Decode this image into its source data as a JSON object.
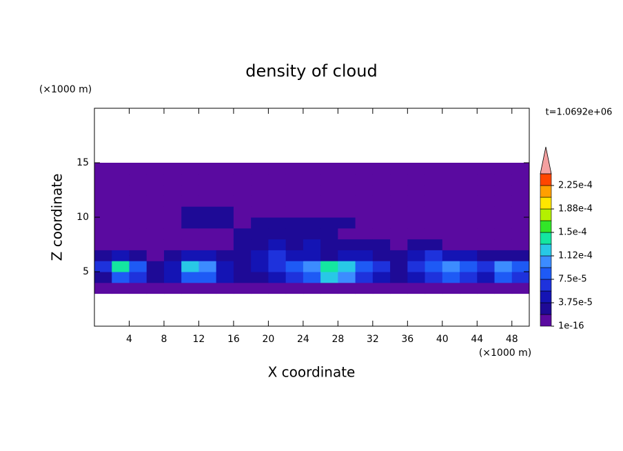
{
  "chart_data": {
    "type": "contour",
    "title": "density of cloud",
    "x_label": "X coordinate",
    "y_label": "Z coordinate",
    "x_unit": "(×1000 m)",
    "y_unit": "(×1000 m)",
    "time_label": "t=1.0692e+06",
    "xlim": [
      0,
      50
    ],
    "ylim": [
      0,
      20
    ],
    "xticks": [
      4,
      8,
      12,
      16,
      20,
      24,
      28,
      32,
      36,
      40,
      44,
      48
    ],
    "yticks": [
      5,
      10,
      15
    ],
    "x_edges": [
      0,
      2,
      4,
      6,
      8,
      10,
      12,
      14,
      16,
      18,
      20,
      22,
      24,
      26,
      28,
      30,
      32,
      34,
      36,
      38,
      40,
      42,
      44,
      46,
      48,
      50
    ],
    "y_edges": [
      3,
      4,
      5,
      6,
      7,
      8,
      9,
      10,
      11,
      12,
      13,
      14,
      15
    ],
    "z": [
      [
        1e-16,
        1e-16,
        1e-16,
        1e-16,
        1e-16,
        1e-16,
        1e-16,
        1e-16,
        1e-16,
        1e-16,
        1e-16,
        1e-16,
        1e-16,
        1e-16,
        1e-16,
        1e-16,
        1e-16,
        1e-16,
        1e-16,
        1e-16,
        1e-16,
        1e-16,
        1e-16,
        1e-16,
        1e-16
      ],
      [
        3e-05,
        8e-05,
        6e-05,
        2e-05,
        4e-05,
        9e-05,
        8e-05,
        4e-05,
        2e-05,
        3e-05,
        4e-05,
        6e-05,
        9e-05,
        0.00013,
        0.00011,
        7e-05,
        5e-05,
        2e-05,
        4e-05,
        6e-05,
        8e-05,
        7e-05,
        5e-05,
        8e-05,
        6e-05
      ],
      [
        7e-05,
        0.00014,
        9e-05,
        3e-05,
        4e-05,
        0.00013,
        0.0001,
        5e-05,
        3e-05,
        5e-05,
        6e-05,
        8e-05,
        0.00011,
        0.00015,
        0.00013,
        8e-05,
        6e-05,
        3e-05,
        6e-05,
        9e-05,
        0.00011,
        9e-05,
        7e-05,
        0.00011,
        9e-05
      ],
      [
        2e-05,
        4e-05,
        3e-05,
        1e-16,
        2e-05,
        4e-05,
        5e-05,
        3e-05,
        3e-05,
        5e-05,
        6e-05,
        5e-05,
        4e-05,
        3e-05,
        4e-05,
        4e-05,
        3e-05,
        2e-05,
        5e-05,
        6e-05,
        5e-05,
        4e-05,
        3e-05,
        3e-05,
        2e-05
      ],
      [
        1e-16,
        1e-16,
        1e-16,
        1e-16,
        1e-16,
        1e-16,
        1e-16,
        1e-16,
        2e-05,
        3e-05,
        4e-05,
        3e-05,
        4e-05,
        3e-05,
        3e-05,
        2e-05,
        2e-05,
        1e-16,
        3e-05,
        2e-05,
        1e-16,
        1e-16,
        1e-16,
        1e-16,
        1e-16
      ],
      [
        1e-16,
        1e-16,
        1e-16,
        1e-16,
        1e-16,
        1e-16,
        1e-16,
        1e-16,
        2e-05,
        3e-05,
        3e-05,
        2e-05,
        2e-05,
        2e-05,
        1e-16,
        1e-16,
        1e-16,
        1e-16,
        1e-16,
        1e-16,
        1e-16,
        1e-16,
        1e-16,
        1e-16,
        1e-16
      ],
      [
        1e-16,
        1e-16,
        1e-16,
        1e-16,
        1e-16,
        2e-05,
        2e-05,
        2e-05,
        1e-16,
        2e-05,
        2e-05,
        2e-05,
        2e-05,
        2e-05,
        2e-05,
        1e-16,
        1e-16,
        1e-16,
        1e-16,
        1e-16,
        1e-16,
        1e-16,
        1e-16,
        1e-16,
        1e-16
      ],
      [
        1e-16,
        1e-16,
        1e-16,
        1e-16,
        1e-16,
        3e-05,
        3e-05,
        2e-05,
        1e-16,
        1e-16,
        1e-16,
        1e-16,
        1e-16,
        1e-16,
        1e-16,
        1e-16,
        1e-16,
        1e-16,
        1e-16,
        1e-16,
        1e-16,
        1e-16,
        1e-16,
        1e-16,
        1e-16
      ],
      [
        1e-16,
        1e-16,
        1e-16,
        1e-16,
        1e-16,
        1e-16,
        1e-16,
        1e-16,
        1e-16,
        1e-16,
        1e-16,
        1e-16,
        1e-16,
        1e-16,
        1e-16,
        1e-16,
        1e-16,
        1e-16,
        1e-16,
        1e-16,
        1e-16,
        1e-16,
        1e-16,
        1e-16,
        1e-16
      ],
      [
        1e-16,
        1e-16,
        1e-16,
        1e-16,
        1e-16,
        1e-16,
        1e-16,
        1e-16,
        1e-16,
        1e-16,
        1e-16,
        1e-16,
        1e-16,
        1e-16,
        1e-16,
        1e-16,
        1e-16,
        1e-16,
        1e-16,
        1e-16,
        1e-16,
        1e-16,
        1e-16,
        1e-16,
        1e-16
      ],
      [
        1e-16,
        1e-16,
        1e-16,
        1e-16,
        1e-16,
        1e-16,
        1e-16,
        1e-16,
        1e-16,
        1e-16,
        1e-16,
        1e-16,
        1e-16,
        1e-16,
        1e-16,
        1e-16,
        1e-16,
        1e-16,
        1e-16,
        1e-16,
        1e-16,
        1e-16,
        1e-16,
        1e-16,
        1e-16
      ],
      [
        1e-16,
        1e-16,
        1e-16,
        1e-16,
        1e-16,
        1e-16,
        1e-16,
        1e-16,
        1e-16,
        1e-16,
        1e-16,
        1e-16,
        1e-16,
        1e-16,
        1e-16,
        1e-16,
        1e-16,
        1e-16,
        1e-16,
        1e-16,
        1e-16,
        1e-16,
        1e-16,
        1e-16,
        1e-16
      ]
    ],
    "clim": [
      1e-16,
      0.00024375
    ],
    "colors": [
      "#5a0aa0",
      "#1e0a96",
      "#1414b4",
      "#1e32dc",
      "#1e5af5",
      "#3c8cff",
      "#28c8e6",
      "#14e6a0",
      "#32e628",
      "#b4f000",
      "#ffe600",
      "#ffa000",
      "#ff4600"
    ],
    "extend_color": "#f4a0a0",
    "cticks": [
      1e-16,
      {
        "value": 3.75e-05,
        "label": "3.75e-5"
      },
      {
        "value": 7.5e-05,
        "label": "7.5e-5"
      },
      {
        "value": 0.0001125,
        "label": "1.12e-4"
      },
      {
        "value": 0.00015,
        "label": "1.5e-4"
      },
      {
        "value": 0.0001875,
        "label": "1.88e-4"
      },
      {
        "value": 0.000225,
        "label": "2.25e-4"
      }
    ]
  }
}
